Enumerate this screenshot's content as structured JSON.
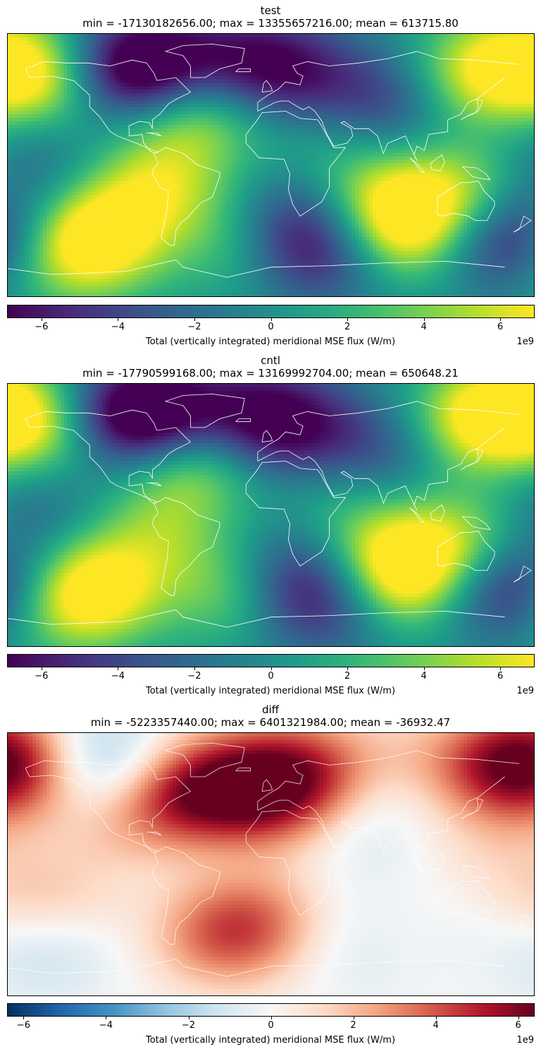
{
  "chart_data": [
    {
      "type": "heatmap",
      "title": "test",
      "subtitle": "min = -17130182656.00; max = 13355657216.00; mean = 613715.80",
      "colormap": "viridis",
      "clim": [
        -6.9,
        6.9
      ],
      "colorbar": {
        "ticks": [
          -6,
          -4,
          -2,
          0,
          2,
          4,
          6
        ],
        "tick_labels": [
          "−6",
          "−4",
          "−2",
          "0",
          "2",
          "4",
          "6"
        ],
        "label": "Total (vertically integrated) meridional MSE flux (W/m)",
        "exponent": "1e9"
      },
      "grid": false,
      "features": [
        {
          "lon": 80,
          "lat": 42,
          "value": -9
        },
        {
          "lon": 110,
          "lat": 50,
          "value": 2
        },
        {
          "lon": 55,
          "lat": 30,
          "value": 4
        },
        {
          "lon": 125,
          "lat": 50,
          "value": 3
        },
        {
          "lon": 160,
          "lat": 70,
          "value": 5
        },
        {
          "lon": -160,
          "lat": 68,
          "value": 4
        },
        {
          "lon": -138,
          "lat": 45,
          "value": 8
        },
        {
          "lon": -98,
          "lat": 62,
          "value": -10
        },
        {
          "lon": -72,
          "lat": 68,
          "value": -4
        },
        {
          "lon": -40,
          "lat": 50,
          "value": 8
        },
        {
          "lon": -15,
          "lat": 65,
          "value": -6
        },
        {
          "lon": 0,
          "lat": 60,
          "value": -5
        },
        {
          "lon": -110,
          "lat": 35,
          "value": -5
        },
        {
          "lon": -165,
          "lat": 25,
          "value": -3
        },
        {
          "lon": -80,
          "lat": 28,
          "value": 5
        },
        {
          "lon": 60,
          "lat": -25,
          "value": 4
        },
        {
          "lon": 135,
          "lat": -20,
          "value": 6
        },
        {
          "lon": -160,
          "lat": -15,
          "value": -2
        },
        {
          "lon": -75,
          "lat": -20,
          "value": 6
        },
        {
          "lon": 0,
          "lat": -25,
          "value": -1
        },
        {
          "lon": 25,
          "lat": -45,
          "value": -9
        },
        {
          "lon": 90,
          "lat": -45,
          "value": 9
        },
        {
          "lon": 160,
          "lat": -48,
          "value": -9
        },
        {
          "lon": -125,
          "lat": -50,
          "value": 9
        },
        {
          "lon": -50,
          "lat": -45,
          "value": -5
        },
        {
          "lon": -25,
          "lat": -50,
          "value": 8
        },
        {
          "lon": 40,
          "lat": -65,
          "value": -3
        },
        {
          "lon": -150,
          "lat": -70,
          "value": 2
        }
      ]
    },
    {
      "type": "heatmap",
      "title": "cntl",
      "subtitle": "min = -17790599168.00; max = 13169992704.00; mean = 650648.21",
      "colormap": "viridis",
      "clim": [
        -6.9,
        6.9
      ],
      "colorbar": {
        "ticks": [
          -6,
          -4,
          -2,
          0,
          2,
          4,
          6
        ],
        "tick_labels": [
          "−6",
          "−4",
          "−2",
          "0",
          "2",
          "4",
          "6"
        ],
        "label": "Total (vertically integrated) meridional MSE flux (W/m)",
        "exponent": "1e9"
      },
      "grid": false,
      "features": [
        {
          "lon": 80,
          "lat": 42,
          "value": -8
        },
        {
          "lon": 110,
          "lat": 50,
          "value": 2
        },
        {
          "lon": 55,
          "lat": 30,
          "value": 4
        },
        {
          "lon": 125,
          "lat": 50,
          "value": 3
        },
        {
          "lon": 160,
          "lat": 72,
          "value": 7
        },
        {
          "lon": -160,
          "lat": 68,
          "value": 3
        },
        {
          "lon": -138,
          "lat": 45,
          "value": 7
        },
        {
          "lon": -95,
          "lat": 65,
          "value": -10
        },
        {
          "lon": -72,
          "lat": 68,
          "value": -4
        },
        {
          "lon": -40,
          "lat": 50,
          "value": 8
        },
        {
          "lon": -10,
          "lat": 65,
          "value": -6
        },
        {
          "lon": 0,
          "lat": 55,
          "value": -6
        },
        {
          "lon": -110,
          "lat": 35,
          "value": -5
        },
        {
          "lon": -165,
          "lat": 25,
          "value": -3
        },
        {
          "lon": -80,
          "lat": 28,
          "value": 5
        },
        {
          "lon": 60,
          "lat": -25,
          "value": 4
        },
        {
          "lon": 135,
          "lat": -20,
          "value": 6
        },
        {
          "lon": -160,
          "lat": -15,
          "value": -2
        },
        {
          "lon": -75,
          "lat": -20,
          "value": 4
        },
        {
          "lon": 0,
          "lat": -25,
          "value": -1
        },
        {
          "lon": 25,
          "lat": -45,
          "value": -9
        },
        {
          "lon": 90,
          "lat": -45,
          "value": 9
        },
        {
          "lon": 160,
          "lat": -48,
          "value": -9
        },
        {
          "lon": -125,
          "lat": -50,
          "value": 9
        },
        {
          "lon": -60,
          "lat": -45,
          "value": -4
        },
        {
          "lon": -25,
          "lat": -50,
          "value": 8
        },
        {
          "lon": 40,
          "lat": -65,
          "value": -3
        },
        {
          "lon": -150,
          "lat": -70,
          "value": 2
        }
      ]
    },
    {
      "type": "heatmap",
      "title": "diff",
      "subtitle": "min = -5223357440.00; max = 6401321984.00; mean = -36932.47",
      "colormap": "RdBu_r",
      "clim": [
        -6.4,
        6.4
      ],
      "colorbar": {
        "ticks": [
          -6,
          -4,
          -2,
          0,
          2,
          4,
          6
        ],
        "tick_labels": [
          "−6",
          "−4",
          "−2",
          "0",
          "2",
          "4",
          "6"
        ],
        "label": "Total (vertically integrated) meridional MSE flux (W/m)",
        "exponent": "1e9"
      },
      "grid": false,
      "features": [
        {
          "lon": 10,
          "lat": 60,
          "value": 3.5
        },
        {
          "lon": 35,
          "lat": 65,
          "value": 2
        },
        {
          "lon": 100,
          "lat": 65,
          "value": 2
        },
        {
          "lon": 75,
          "lat": 55,
          "value": -2
        },
        {
          "lon": 175,
          "lat": 68,
          "value": 6
        },
        {
          "lon": -160,
          "lat": 70,
          "value": 3
        },
        {
          "lon": -135,
          "lat": 70,
          "value": -3
        },
        {
          "lon": -110,
          "lat": 65,
          "value": -3.5
        },
        {
          "lon": -80,
          "lat": 55,
          "value": 2.5
        },
        {
          "lon": -45,
          "lat": 48,
          "value": 5
        },
        {
          "lon": -30,
          "lat": 35,
          "value": -2
        },
        {
          "lon": -5,
          "lat": 40,
          "value": 3
        },
        {
          "lon": -100,
          "lat": 30,
          "value": 1.5
        },
        {
          "lon": 60,
          "lat": 20,
          "value": -1
        },
        {
          "lon": 140,
          "lat": 10,
          "value": 1
        },
        {
          "lon": 10,
          "lat": -30,
          "value": 1.5
        },
        {
          "lon": 55,
          "lat": -35,
          "value": -1.5
        },
        {
          "lon": 90,
          "lat": -40,
          "value": 2
        },
        {
          "lon": 130,
          "lat": -35,
          "value": -2
        },
        {
          "lon": 170,
          "lat": -35,
          "value": 2
        },
        {
          "lon": -150,
          "lat": -35,
          "value": 2
        },
        {
          "lon": -155,
          "lat": -50,
          "value": -3.5
        },
        {
          "lon": -120,
          "lat": -35,
          "value": 1.5
        },
        {
          "lon": -90,
          "lat": -35,
          "value": -1.5
        },
        {
          "lon": -40,
          "lat": -45,
          "value": 2.5
        },
        {
          "lon": -20,
          "lat": -50,
          "value": 2
        },
        {
          "lon": 60,
          "lat": -60,
          "value": -1
        }
      ]
    }
  ]
}
